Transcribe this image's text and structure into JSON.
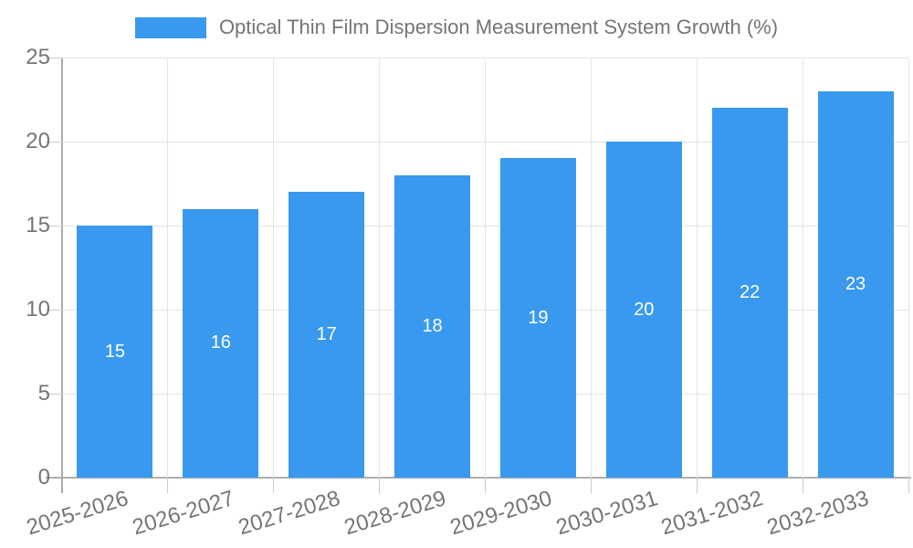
{
  "legend": {
    "label": "Optical Thin Film Dispersion Measurement System Growth (%)",
    "swatch_color": "#3999ee"
  },
  "chart_data": {
    "type": "bar",
    "title": "Optical Thin Film Dispersion Measurement System Growth (%)",
    "categories": [
      "2025-2026",
      "2026-2027",
      "2027-2028",
      "2028-2029",
      "2029-2030",
      "2030-2031",
      "2031-2032",
      "2032-2033"
    ],
    "values": [
      15,
      16,
      17,
      18,
      19,
      20,
      22,
      23
    ],
    "value_labels": [
      "15",
      "16",
      "17",
      "18",
      "19",
      "20",
      "22",
      "23"
    ],
    "value_label_position": "inside-center",
    "xlabel": "",
    "ylabel": "",
    "ylim": [
      0,
      25
    ],
    "yticks": [
      0,
      5,
      10,
      15,
      20,
      25
    ],
    "grid": "horizontal and vertical light gray gridlines",
    "legend_position": "top-center",
    "x_tick_label_rotation_deg": -17
  },
  "colors": {
    "bar": "#3999ee",
    "value_label_text": "#ffffff",
    "axis_line": "#b0b0b0",
    "gridline": "#e4e4e4",
    "tick": "#cccccc",
    "label_text": "#757575",
    "background": "#ffffff"
  }
}
